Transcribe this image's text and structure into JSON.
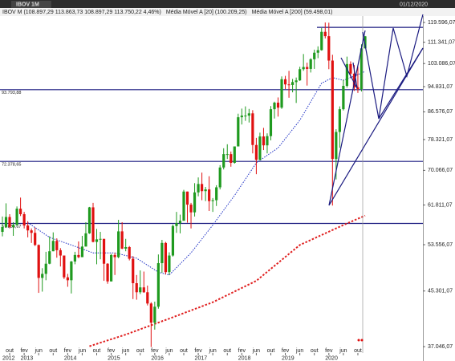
{
  "toolbar": {
    "tab": "IBOV 1M",
    "date": "01/12/2020"
  },
  "chart_data": {
    "type": "candlestick",
    "name": "IBOV M (108.897,29 113.863,73 108.897,29 113.750,22 4,46%)",
    "up_color": "#1f9a1f",
    "down_color": "#e01010",
    "log_scale": true,
    "grid": false,
    "x": [
      "2012-08",
      "2012-09",
      "2012-10",
      "2012-11",
      "2012-12",
      "2013-01",
      "2013-02",
      "2013-03",
      "2013-04",
      "2013-05",
      "2013-06",
      "2013-07",
      "2013-08",
      "2013-09",
      "2013-10",
      "2013-11",
      "2013-12",
      "2014-01",
      "2014-02",
      "2014-03",
      "2014-04",
      "2014-05",
      "2014-06",
      "2014-07",
      "2014-08",
      "2014-09",
      "2014-10",
      "2014-11",
      "2014-12",
      "2015-01",
      "2015-02",
      "2015-03",
      "2015-04",
      "2015-05",
      "2015-06",
      "2015-07",
      "2015-08",
      "2015-09",
      "2015-10",
      "2015-11",
      "2015-12",
      "2016-01",
      "2016-02",
      "2016-03",
      "2016-04",
      "2016-05",
      "2016-06",
      "2016-07",
      "2016-08",
      "2016-09",
      "2016-10",
      "2016-11",
      "2016-12",
      "2017-01",
      "2017-02",
      "2017-03",
      "2017-04",
      "2017-05",
      "2017-06",
      "2017-07",
      "2017-08",
      "2017-09",
      "2017-10",
      "2017-11",
      "2017-12",
      "2018-01",
      "2018-02",
      "2018-03",
      "2018-04",
      "2018-05",
      "2018-06",
      "2018-07",
      "2018-08",
      "2018-09",
      "2018-10",
      "2018-11",
      "2018-12",
      "2019-01",
      "2019-02",
      "2019-03",
      "2019-04",
      "2019-05",
      "2019-06",
      "2019-07",
      "2019-08",
      "2019-09",
      "2019-10",
      "2019-11",
      "2019-12",
      "2020-01",
      "2020-02",
      "2020-03",
      "2020-04",
      "2020-05",
      "2020-06",
      "2020-07",
      "2020-08",
      "2020-09",
      "2020-10",
      "2020-11",
      "2020-12"
    ],
    "open": [
      56100,
      57100,
      59200,
      57100,
      57500,
      61000,
      59800,
      57400,
      56400,
      55900,
      53500,
      47500,
      48200,
      50000,
      52300,
      54300,
      52500,
      51500,
      47600,
      47100,
      50400,
      51600,
      51200,
      53200,
      55800,
      61300,
      54100,
      54600,
      54700,
      50000,
      46900,
      51600,
      51200,
      56200,
      52800,
      53100,
      50900,
      46600,
      45100,
      45900,
      45100,
      43300,
      40400,
      42800,
      50100,
      53900,
      48500,
      51500,
      57300,
      57900,
      58400,
      64900,
      61900,
      60200,
      64700,
      66700,
      65000,
      65400,
      62700,
      62900,
      65900,
      70800,
      74300,
      74300,
      72000,
      76400,
      84900,
      85400,
      85400,
      86100,
      76800,
      72800,
      79200,
      76700,
      79300,
      87400,
      89500,
      87900,
      97400,
      95600,
      95400,
      96400,
      97000,
      101000,
      101800,
      101100,
      104700,
      107200,
      108200,
      115600,
      113800,
      104200,
      73000,
      80500,
      87400,
      95100,
      102900,
      99400,
      94600,
      94000,
      108897
    ],
    "high": [
      59300,
      62200,
      59800,
      58100,
      61500,
      63500,
      60300,
      58300,
      56800,
      57000,
      53600,
      49200,
      52200,
      55200,
      56000,
      54800,
      52900,
      51500,
      48200,
      50500,
      52200,
      54200,
      55300,
      58100,
      61400,
      62300,
      56700,
      56100,
      54700,
      50100,
      51800,
      52000,
      58600,
      58100,
      54700,
      53300,
      51400,
      48000,
      48800,
      48600,
      46200,
      43500,
      43600,
      51700,
      54500,
      54100,
      52100,
      57600,
      60300,
      59700,
      65300,
      64900,
      62300,
      66900,
      68300,
      69500,
      66000,
      68600,
      63400,
      66400,
      71400,
      75900,
      77000,
      75000,
      76400,
      86000,
      87600,
      88300,
      87500,
      87100,
      78800,
      80300,
      81700,
      80100,
      88400,
      89800,
      91200,
      98400,
      98600,
      100400,
      97500,
      98000,
      101900,
      106700,
      103400,
      105100,
      108400,
      109700,
      117200,
      119600,
      119500,
      106400,
      81300,
      88300,
      97300,
      105700,
      103900,
      102500,
      101900,
      110500,
      113864
    ],
    "low": [
      55200,
      56900,
      56800,
      55300,
      57400,
      59400,
      56800,
      55000,
      53900,
      53300,
      45000,
      45200,
      47100,
      49900,
      52300,
      51100,
      49500,
      47300,
      46000,
      44900,
      49900,
      51000,
      51200,
      53200,
      55700,
      54000,
      49900,
      50800,
      47000,
      46500,
      46900,
      48000,
      51000,
      52700,
      52300,
      50600,
      44000,
      43900,
      44800,
      45000,
      43000,
      37000,
      39400,
      42500,
      48400,
      48100,
      48000,
      51300,
      55900,
      55800,
      58400,
      58000,
      56800,
      59300,
      63800,
      62900,
      62700,
      60500,
      60300,
      61600,
      65400,
      70300,
      73000,
      71000,
      71800,
      76400,
      82700,
      83800,
      83300,
      74500,
      69100,
      72600,
      75400,
      74500,
      78100,
      84500,
      85100,
      87500,
      94000,
      91100,
      92900,
      89400,
      96800,
      100400,
      95200,
      99800,
      101100,
      105100,
      108000,
      112900,
      101000,
      61700,
      67800,
      76000,
      87000,
      94500,
      98000,
      93400,
      92700,
      93200,
      108897
    ],
    "close": [
      57100,
      59200,
      57100,
      57500,
      61000,
      59800,
      57400,
      56400,
      55900,
      53500,
      47500,
      48200,
      50000,
      52300,
      54300,
      52500,
      51500,
      47600,
      47100,
      50400,
      51600,
      51200,
      53200,
      55800,
      61300,
      54100,
      54600,
      54700,
      50000,
      46900,
      51600,
      51200,
      56200,
      52800,
      53100,
      50900,
      46600,
      45100,
      45900,
      45100,
      43300,
      40400,
      42800,
      50100,
      53900,
      48500,
      51500,
      57300,
      57900,
      58400,
      64900,
      61900,
      60200,
      64700,
      66700,
      65000,
      65400,
      62700,
      62900,
      65900,
      70800,
      74300,
      74300,
      72000,
      76400,
      84900,
      85400,
      85400,
      86100,
      76800,
      72800,
      79200,
      76700,
      79300,
      87400,
      89500,
      87900,
      97400,
      95600,
      95400,
      96400,
      97000,
      101000,
      101800,
      101100,
      104700,
      107200,
      108200,
      115600,
      113800,
      104200,
      73000,
      80500,
      87400,
      95100,
      102900,
      99400,
      94600,
      94000,
      108900,
      113750
    ],
    "overlays": [
      {
        "name": "Média Móvel A [20] (100.209,25)",
        "color": "#1c2fc4",
        "x": [
          "2013-03",
          "2013-09",
          "2014-03",
          "2014-09",
          "2015-03",
          "2015-09",
          "2016-03",
          "2016-06",
          "2016-12",
          "2017-06",
          "2017-12",
          "2018-06",
          "2018-12",
          "2019-06",
          "2019-12",
          "2020-03",
          "2020-06",
          "2020-09",
          "2020-12"
        ],
        "values": [
          58000,
          55000,
          53500,
          52000,
          52000,
          51000,
          48500,
          48000,
          52000,
          57500,
          64000,
          72000,
          76000,
          84000,
          96000,
          98000,
          97000,
          98500,
          100209
        ]
      },
      {
        "name": "Média Móvel A [200] (59.498,01)",
        "color": "#e02020",
        "x": [
          "2014-08",
          "2015-06",
          "2016-06",
          "2017-06",
          "2018-06",
          "2019-06",
          "2020-06",
          "2020-12"
        ],
        "values": [
          37100,
          38700,
          41000,
          43500,
          47000,
          53500,
          57500,
          59498
        ]
      }
    ],
    "hlines": [
      117500,
      {
        "value": 93793.88,
        "label": "93.793,88"
      },
      {
        "value": 72378.65,
        "label": "72.378,65"
      },
      {
        "value": 57835.67,
        "label": "57.835,67"
      }
    ],
    "ylim": [
      36000,
      122400
    ],
    "yticks": [
      {
        "value": 119596.07,
        "label": "119.596,07"
      },
      {
        "value": 111341.07,
        "label": "111.341,07"
      },
      {
        "value": 103086.07,
        "label": "103.086,07"
      },
      {
        "value": 94831.07,
        "label": "94.831,07"
      },
      {
        "value": 86576.07,
        "label": "86.576,07"
      },
      {
        "value": 78321.07,
        "label": "78.321,07"
      },
      {
        "value": 70066.07,
        "label": "70.066,07"
      },
      {
        "value": 61811.07,
        "label": "61.811,07"
      },
      {
        "value": 53556.07,
        "label": "53.556,07"
      },
      {
        "value": 45301.07,
        "label": "45.301,07"
      },
      {
        "value": 37046.07,
        "label": "37.046,07"
      }
    ],
    "xticks": [
      {
        "value": "2012-10",
        "label": "out"
      },
      {
        "value": "2013-02",
        "label": "fev"
      },
      {
        "value": "2013-06",
        "label": "jun"
      },
      {
        "value": "2013-10",
        "label": "out"
      },
      {
        "value": "2014-02",
        "label": "fev"
      },
      {
        "value": "2014-06",
        "label": "jun"
      },
      {
        "value": "2014-10",
        "label": "out"
      },
      {
        "value": "2015-02",
        "label": "fev"
      },
      {
        "value": "2015-06",
        "label": "jun"
      },
      {
        "value": "2015-10",
        "label": "out"
      },
      {
        "value": "2016-02",
        "label": "fev"
      },
      {
        "value": "2016-06",
        "label": "jun"
      },
      {
        "value": "2016-10",
        "label": "out"
      },
      {
        "value": "2017-02",
        "label": "fev"
      },
      {
        "value": "2017-06",
        "label": "jun"
      },
      {
        "value": "2017-10",
        "label": "out"
      },
      {
        "value": "2018-02",
        "label": "fev"
      },
      {
        "value": "2018-06",
        "label": "jun"
      },
      {
        "value": "2018-10",
        "label": "out"
      },
      {
        "value": "2019-02",
        "label": "fev"
      },
      {
        "value": "2019-06",
        "label": "jun"
      },
      {
        "value": "2019-10",
        "label": "out"
      },
      {
        "value": "2020-02",
        "label": "fev"
      },
      {
        "value": "2020-06",
        "label": "jun"
      },
      {
        "value": "2020-10",
        "label": "out"
      }
    ],
    "year_ticks": [
      {
        "value": "2012-08",
        "label": "2012"
      },
      {
        "value": "2013-01",
        "label": "2013"
      },
      {
        "value": "2014-01",
        "label": "2014"
      },
      {
        "value": "2015-01",
        "label": "2015"
      },
      {
        "value": "2016-01",
        "label": "2016"
      },
      {
        "value": "2017-01",
        "label": "2017"
      },
      {
        "value": "2018-01",
        "label": "2018"
      },
      {
        "value": "2019-01",
        "label": "2019"
      },
      {
        "value": "2020-01",
        "label": "2020"
      }
    ]
  }
}
